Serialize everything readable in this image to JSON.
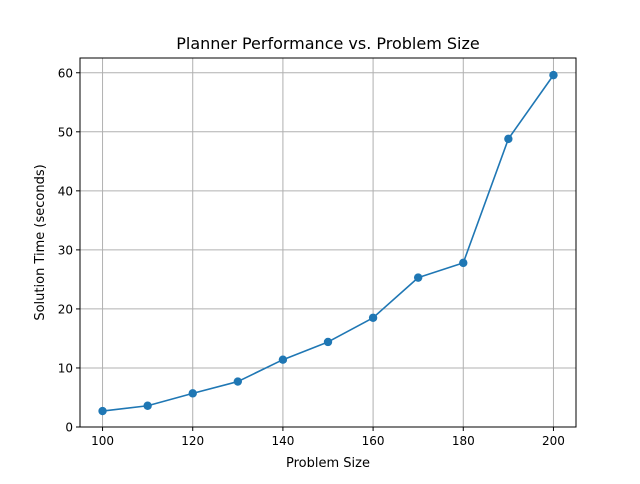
{
  "colors": {
    "series": "#1f77b4",
    "grid": "#b0b0b0",
    "axis": "#000000",
    "background": "#ffffff"
  },
  "chart_data": {
    "type": "line",
    "title": "Planner Performance vs. Problem Size",
    "xlabel": "Problem Size",
    "ylabel": "Solution Time (seconds)",
    "xlim": [
      95,
      205
    ],
    "ylim": [
      0,
      62.5
    ],
    "x_ticks": [
      100,
      120,
      140,
      160,
      180,
      200
    ],
    "y_ticks": [
      0,
      10,
      20,
      30,
      40,
      50,
      60
    ],
    "grid": true,
    "marker": "circle",
    "series": [
      {
        "x": [
          100,
          110,
          120,
          130,
          140,
          150,
          160,
          170,
          180,
          190,
          200
        ],
        "values": [
          2.7,
          3.6,
          5.7,
          7.7,
          11.4,
          14.4,
          18.5,
          25.3,
          27.8,
          48.8,
          59.6
        ]
      }
    ]
  }
}
